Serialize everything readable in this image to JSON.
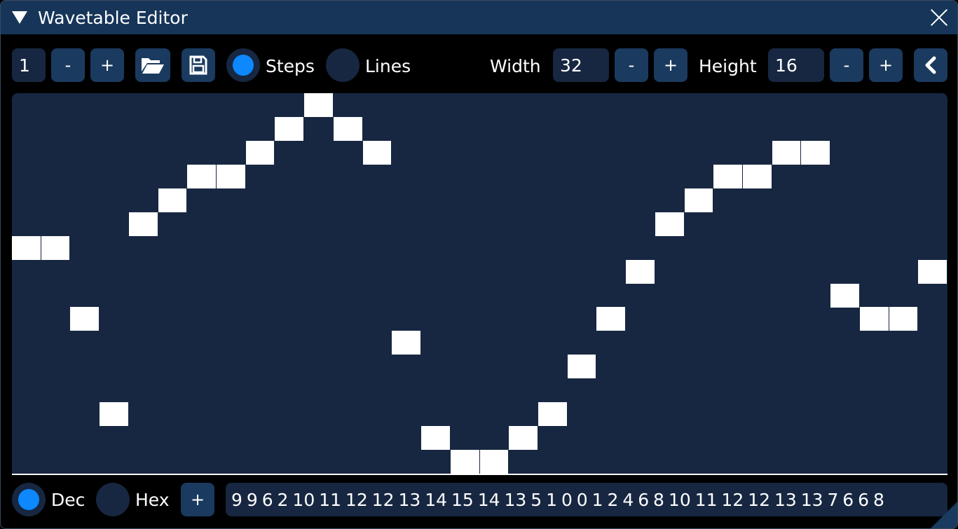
{
  "window": {
    "title": "Wavetable Editor"
  },
  "toolbar": {
    "index": "1",
    "minus": "-",
    "plus": "+",
    "open_icon": "folder-open-icon",
    "save_icon": "floppy-disk-icon",
    "steps_label": "Steps",
    "lines_label": "Lines",
    "mode_selected": "Steps",
    "width_label": "Width",
    "width_value": "32",
    "height_label": "Height",
    "height_value": "16",
    "collapse_icon": "chevron-left-icon"
  },
  "footer": {
    "dec_label": "Dec",
    "hex_label": "Hex",
    "format_selected": "Dec",
    "add": "+",
    "values_text": "9 9 6 2 10 11 12 12 13 14 15 14 13 5 1 0 0 1 2 4 6 8 10 11 12 12 13 13 7 6 6 8"
  },
  "wave": {
    "values": [
      9,
      9,
      6,
      2,
      10,
      11,
      12,
      12,
      13,
      14,
      15,
      14,
      13,
      5,
      1,
      0,
      0,
      1,
      2,
      4,
      6,
      8,
      10,
      11,
      12,
      12,
      13,
      13,
      7,
      6,
      6,
      8
    ],
    "width": 32,
    "height": 16
  },
  "colors": {
    "titlebar": "#163559",
    "panel": "#172741",
    "button": "#1b3a5f",
    "accent": "#0d88ff"
  }
}
